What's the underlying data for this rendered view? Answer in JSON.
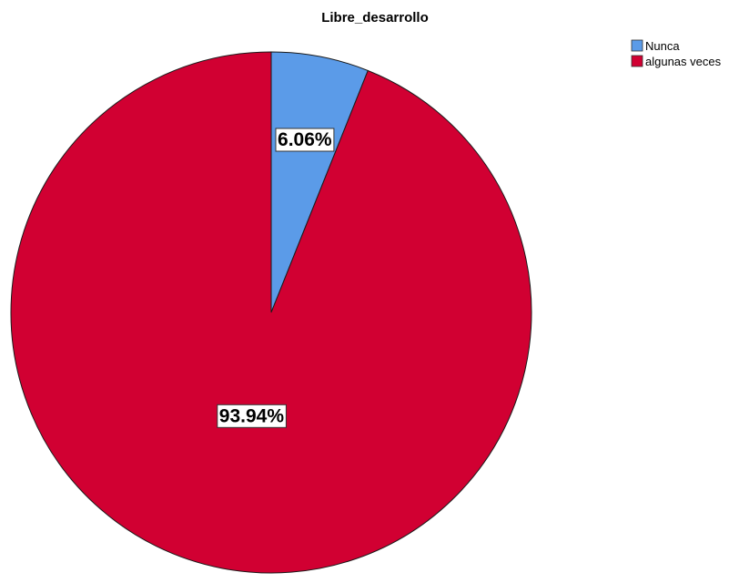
{
  "chart_data": {
    "type": "pie",
    "title": "Libre_desarrollo",
    "start_angle_deg": 0,
    "direction": "clockwise",
    "legend_position": "top-right",
    "slices": [
      {
        "label": "Nunca",
        "value": 6.06,
        "data_label": "6.06%",
        "color": "#5b9be8"
      },
      {
        "label": "algunas veces",
        "value": 93.94,
        "data_label": "93.94%",
        "color": "#d10032"
      }
    ],
    "border_color": "#1a1a1a"
  }
}
